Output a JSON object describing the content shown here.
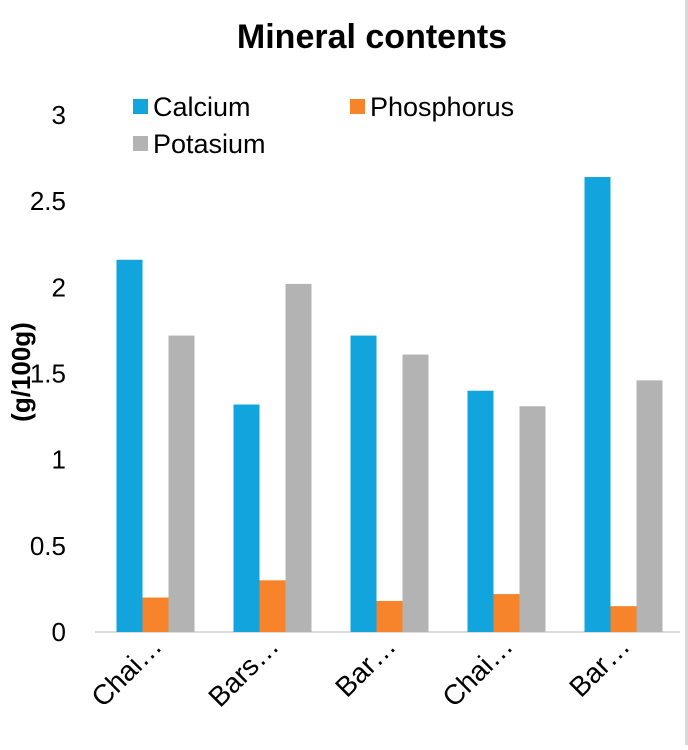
{
  "chart_data": {
    "type": "bar",
    "title": "Mineral contents",
    "xlabel": "",
    "ylabel": "(g/100g)",
    "ylim": [
      0,
      3
    ],
    "yticks": [
      0,
      0.5,
      1,
      1.5,
      2,
      2.5,
      3
    ],
    "ytick_labels": [
      "0",
      "0.5",
      "1",
      "1.5",
      "2",
      "2.5",
      "3"
    ],
    "grid": false,
    "legend_position": "top-left",
    "categories": [
      "Chai…",
      "Bars…",
      "Bar…",
      "Chai…",
      "Bar…"
    ],
    "series": [
      {
        "name": "Calcium",
        "color": "#12a4dd",
        "values": [
          2.16,
          1.32,
          1.72,
          1.4,
          2.64
        ]
      },
      {
        "name": "Phosphorus",
        "color": "#f7842a",
        "values": [
          0.2,
          0.3,
          0.18,
          0.22,
          0.15
        ]
      },
      {
        "name": "Potasium",
        "color": "#b3b3b3",
        "values": [
          1.72,
          2.02,
          1.61,
          1.31,
          1.46
        ]
      }
    ]
  }
}
